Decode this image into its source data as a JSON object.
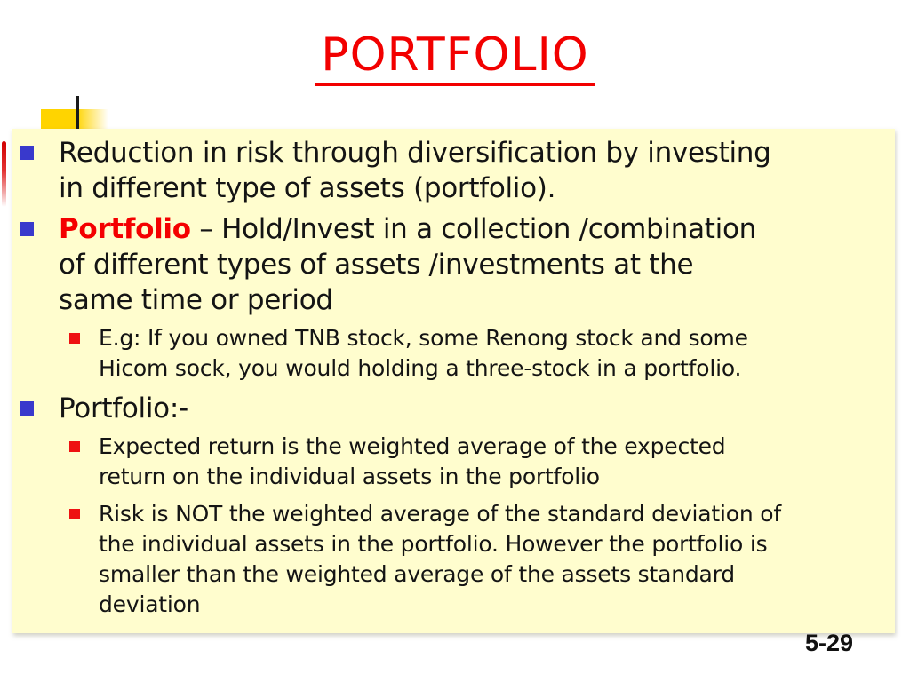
{
  "slide": {
    "title": "PORTFOLIO",
    "page_number": "5-29",
    "colors": {
      "title_red": "#F20000",
      "lead_red": "#F40000",
      "bullet_blue": "#3939CC",
      "bullet_red": "#EE1111",
      "panel_background": "#FFFDCE",
      "gold_decoration": "#FFD400",
      "body_text": "#141414"
    },
    "bullets": [
      {
        "level": 1,
        "text": "Reduction in risk through diversification by investing\nin different type of assets (portfolio)."
      },
      {
        "level": 1,
        "lead": "Portfolio",
        "text": " – Hold/Invest in a collection /combination\nof different types of assets /investments at the\nsame time or period"
      },
      {
        "level": 2,
        "text": "E.g: If you owned TNB stock, some Renong stock and some\nHicom sock, you would holding a three-stock in a portfolio."
      },
      {
        "level": 1,
        "text": "Portfolio:-"
      },
      {
        "level": 2,
        "text": "Expected return is the weighted average of the expected\nreturn on the individual assets in the portfolio"
      },
      {
        "level": 2,
        "text": "Risk is NOT the weighted average of the standard deviation of\nthe individual assets in the portfolio. However the portfolio is\nsmaller than the weighted average of the assets standard\ndeviation"
      }
    ]
  }
}
